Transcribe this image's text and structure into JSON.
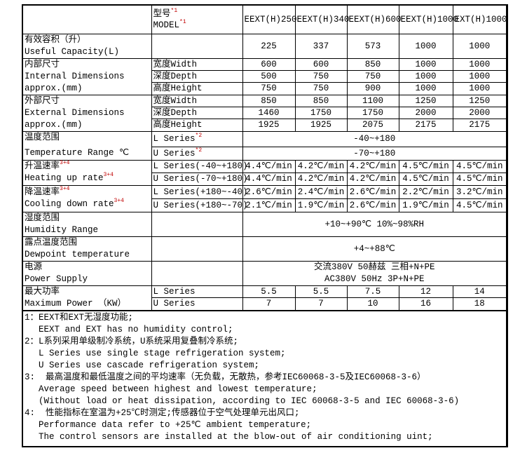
{
  "header": {
    "model_cn": "型号",
    "model_en": "MODEL",
    "sup": "*1",
    "models": [
      "EEXT(H)250",
      "EEXT(H)340",
      "EEXT(H)600",
      "EEXT(H)1000",
      "EXT(H)1000"
    ]
  },
  "capacity": {
    "cn": "有效容积（升）",
    "en": "Useful Capacity(L)",
    "values": [
      "225",
      "337",
      "573",
      "1000",
      "1000"
    ]
  },
  "internal": {
    "cn": "内部尺寸",
    "en1": "Internal Dimensions",
    "en2": "approx.(mm)",
    "rows": [
      {
        "label": "宽度Width",
        "values": [
          "600",
          "600",
          "850",
          "1000",
          "1000"
        ]
      },
      {
        "label": "深度Depth",
        "values": [
          "500",
          "750",
          "750",
          "1000",
          "1000"
        ]
      },
      {
        "label": "高度Height",
        "values": [
          "750",
          "750",
          "900",
          "1000",
          "1000"
        ]
      }
    ]
  },
  "external": {
    "cn": "外部尺寸",
    "en1": "External Dimensions",
    "en2": "approx.(mm)",
    "rows": [
      {
        "label": "宽度Width",
        "values": [
          "850",
          "850",
          "1100",
          "1250",
          "1250"
        ]
      },
      {
        "label": "深度Depth",
        "values": [
          "1460",
          "1750",
          "1750",
          "2000",
          "2000"
        ]
      },
      {
        "label": "高度Height",
        "values": [
          "1925",
          "1925",
          "2075",
          "2175",
          "2175"
        ]
      }
    ]
  },
  "temp_range": {
    "cn": "温度范围",
    "en": "Temperature Range ℃",
    "sup": "*2",
    "rows": [
      {
        "label": "L Series",
        "value": "-40~+180"
      },
      {
        "label": "U Series",
        "value": "-70~+180"
      }
    ]
  },
  "heating": {
    "cn": "升温速率",
    "en": "Heating up rate",
    "sup": "3+4",
    "rows": [
      {
        "label": "L Series(-40~+180)",
        "values": [
          "4.4℃/min",
          "4.2℃/min",
          "4.2℃/min",
          "4.5℃/min",
          "4.5℃/min"
        ]
      },
      {
        "label": "U Series(-70~+180)",
        "values": [
          "4.4℃/min",
          "4.2℃/min",
          "4.2℃/min",
          "4.5℃/min",
          "4.5℃/min"
        ]
      }
    ]
  },
  "cooling": {
    "cn": "降温速率",
    "en": "Cooling down rate",
    "sup": "3+4",
    "rows": [
      {
        "label": "L Series(+180~-40)",
        "values": [
          "2.6℃/min",
          "2.4℃/min",
          "2.6℃/min",
          "2.2℃/min",
          "3.2℃/min"
        ]
      },
      {
        "label": "U Series(+180~-70)",
        "values": [
          "2.1℃/min",
          "1.9℃/min",
          "2.6℃/min",
          "1.9℃/min",
          "4.5℃/min"
        ]
      }
    ]
  },
  "humidity": {
    "cn": "湿度范围",
    "en": "Humidity Range",
    "value": "+10~+90℃ 10%~98%RH"
  },
  "dewpoint": {
    "cn": "露点温度范围",
    "en": "Dewpoint temperature",
    "value": "+4~+88℃"
  },
  "power_supply": {
    "cn": "电源",
    "en": "Power Supply",
    "value_cn": "交流380V 50赫兹 三相+N+PE",
    "value_en": "AC380V 50Hz 3P+N+PE"
  },
  "max_power": {
    "cn": "最大功率",
    "en": "Maximum Power （KW）",
    "rows": [
      {
        "label": "L Series",
        "values": [
          "5.5",
          "5.5",
          "7.5",
          "12",
          "14"
        ]
      },
      {
        "label": "U Series",
        "values": [
          "7",
          "7",
          "10",
          "16",
          "18"
        ]
      }
    ]
  },
  "notes": [
    {
      "text": "1：EEXT和EXT无湿度功能;",
      "indent": false
    },
    {
      "text": "EEXT and EXT has no humidity control;",
      "indent": true
    },
    {
      "text": "2：L系列采用单级制冷系统，U系统采用复叠制冷系统;",
      "indent": false
    },
    {
      "text": "L Series use single stage refrigeration system;",
      "indent": true
    },
    {
      "text": "U Series use cascade refrigeration system;",
      "indent": true
    },
    {
      "text": "3:  最高温度和最低温度之间的平均速率（无负载，无散热，参考IEC60068-3-5及IEC60068-3-6）",
      "indent": false
    },
    {
      "text": "Average speed between highest and lowest temperature;",
      "indent": true
    },
    {
      "text": "(Without load or heat dissipation, according to IEC 60068-3-5 and IEC 60068-3-6)",
      "indent": true
    },
    {
      "text": "4:  性能指标在室温为+25℃时测定;传感器位于空气处理单元出风口;",
      "indent": false
    },
    {
      "text": "Performance data refer to +25℃ ambient temperature;",
      "indent": true
    },
    {
      "text": "The control sensors are installed at the blow-out of air conditioning uint;",
      "indent": true
    }
  ]
}
